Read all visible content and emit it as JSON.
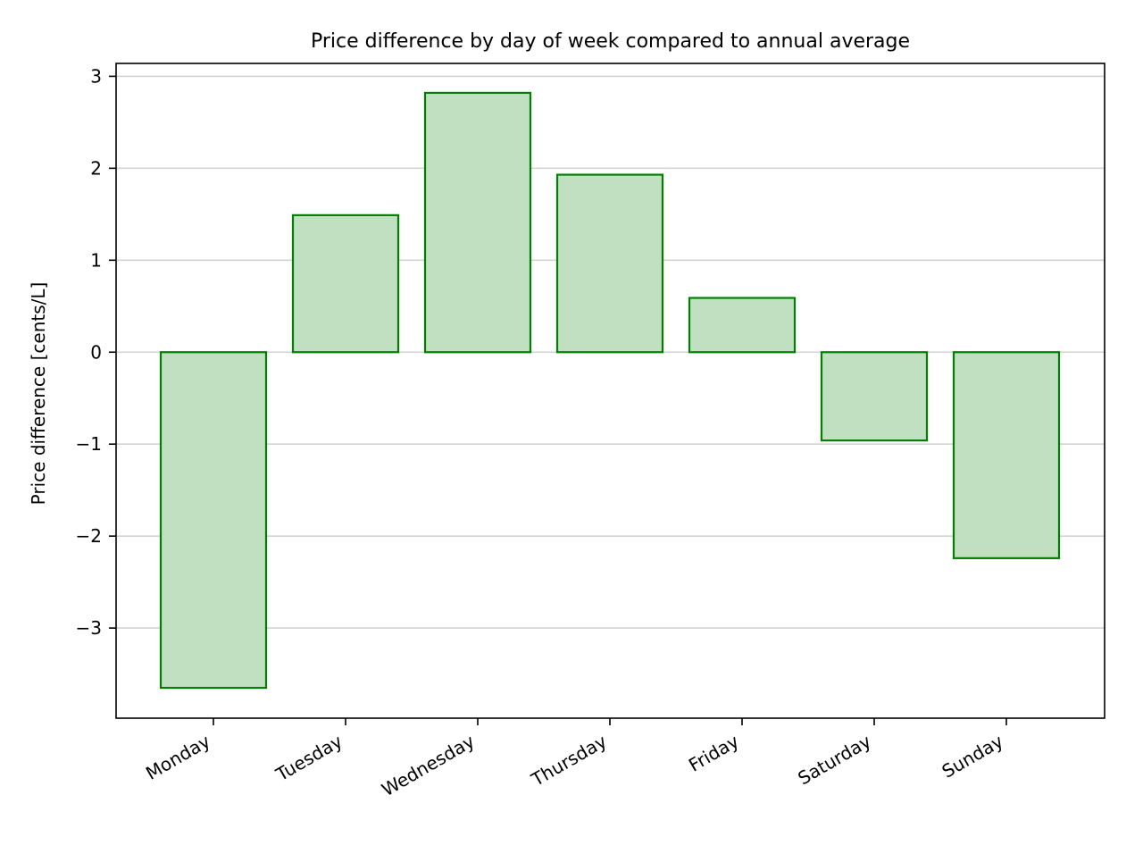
{
  "chart_data": {
    "type": "bar",
    "title": "Price difference by day of week compared to annual average",
    "xlabel": "",
    "ylabel": "Price difference [cents/L]",
    "categories": [
      "Monday",
      "Tuesday",
      "Wednesday",
      "Thursday",
      "Friday",
      "Saturday",
      "Sunday"
    ],
    "values": [
      -3.65,
      1.49,
      2.82,
      1.93,
      0.59,
      -0.96,
      -2.24
    ],
    "ylim": [
      -3.98,
      3.14
    ],
    "yticks": [
      3,
      2,
      1,
      0,
      -1,
      -2,
      -3
    ],
    "ytick_labels": [
      "3",
      "2",
      "1",
      "0",
      "−1",
      "−2",
      "−3"
    ],
    "grid": "horizontal",
    "legend": "none",
    "colors": {
      "bar_fill": "#c1e0c1",
      "bar_edge": "#008000",
      "grid": "#d3d3d3",
      "axes": "#000000"
    }
  }
}
